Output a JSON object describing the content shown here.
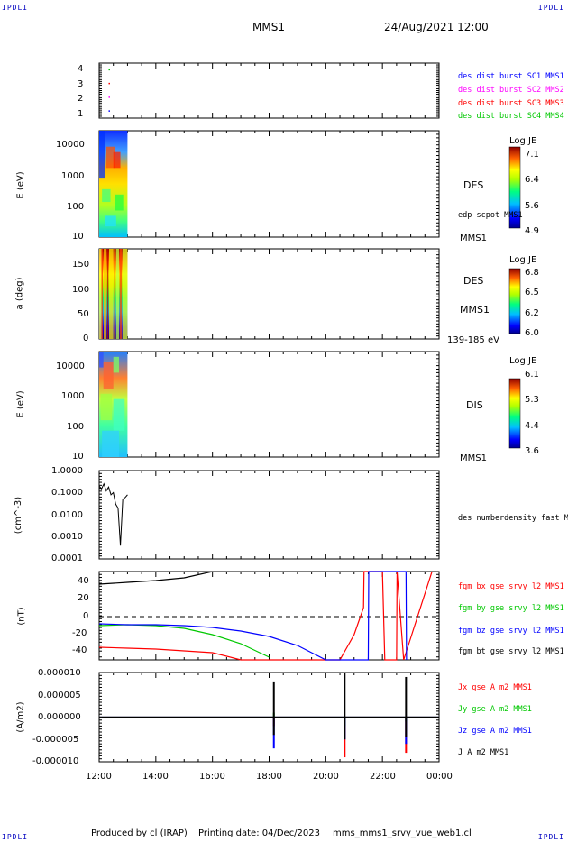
{
  "header": {
    "corner_tl": "IPDLI",
    "corner_tr": "IPDLI",
    "corner_bl": "IPDLI",
    "corner_br": "IPDLI",
    "spacecraft": "MMS1",
    "datetime": "24/Aug/2021 12:00"
  },
  "footer": {
    "produced": "Produced by cl (IRAP)",
    "printing": "Printing date: 04/Dec/2023",
    "file": "mms_mms1_srvy_vue_web1.cl"
  },
  "x_axis": {
    "ticks": [
      "12:00",
      "14:00",
      "16:00",
      "18:00",
      "20:00",
      "22:00",
      "00:00"
    ]
  },
  "panels": {
    "burst": {
      "yticks": [
        "4",
        "3",
        "2",
        "1"
      ],
      "legend": [
        {
          "text": "des dist burst SC1 MMS1",
          "color": "#0000ff"
        },
        {
          "text": "des dist burst SC2 MMS2",
          "color": "#ff00ff"
        },
        {
          "text": "des dist burst SC3 MMS3",
          "color": "#ff0000"
        },
        {
          "text": "des dist burst SC4 MMS4",
          "color": "#00c800"
        }
      ]
    },
    "des_energy": {
      "ytitle": "E (eV)",
      "yticks": [
        "10000",
        "1000",
        "100",
        "10"
      ],
      "label1": "DES",
      "label2": "edp scpot MMS1",
      "label3": "MMS1",
      "cbar_title": "Log JE",
      "cbar_ticks": [
        "7.1",
        "6.4",
        "5.6",
        "4.9"
      ]
    },
    "des_pitch": {
      "ytitle": "a (deg)",
      "yticks": [
        "150",
        "100",
        "50",
        "0"
      ],
      "label1": "DES",
      "label2": "MMS1",
      "label3": "139-185 eV",
      "cbar_title": "Log JE",
      "cbar_ticks": [
        "6.8",
        "6.5",
        "6.2",
        "6.0"
      ]
    },
    "dis_energy": {
      "ytitle": "E (eV)",
      "yticks": [
        "10000",
        "1000",
        "100",
        "10"
      ],
      "label1": "DIS",
      "label2": "MMS1",
      "cbar_title": "Log JE",
      "cbar_ticks": [
        "6.1",
        "5.3",
        "4.4",
        "3.6"
      ]
    },
    "density": {
      "ytitle": "(cm^-3)",
      "yticks": [
        "1.0000",
        "0.1000",
        "0.0100",
        "0.0010",
        "0.0001"
      ],
      "label1": "des numberdensity fast M"
    },
    "bfield": {
      "ytitle": "(nT)",
      "yticks": [
        "40",
        "20",
        "0",
        "-20",
        "-40"
      ],
      "legend": [
        {
          "text": "fgm bx gse srvy l2 MMS1",
          "color": "#ff0000"
        },
        {
          "text": "fgm by gse srvy l2 MMS1",
          "color": "#00c800"
        },
        {
          "text": "fgm bz gse srvy l2 MMS1",
          "color": "#0000ff"
        },
        {
          "text": "fgm bt gse srvy l2 MMS1",
          "color": "#000000"
        }
      ]
    },
    "current": {
      "ytitle": "(A/m2)",
      "yticks": [
        "0.000010",
        "0.000005",
        "0.000000",
        "-0.000005",
        "-0.000010"
      ],
      "legend": [
        {
          "text": "Jx gse A m2 MMS1",
          "color": "#ff0000"
        },
        {
          "text": "Jy gse A m2 MMS1",
          "color": "#00c800"
        },
        {
          "text": "Jz gse A m2 MMS1",
          "color": "#0000ff"
        },
        {
          "text": "J A m2 MMS1",
          "color": "#000000"
        }
      ]
    }
  },
  "chart_data": [
    {
      "type": "scatter",
      "title": "des dist burst",
      "x_range": [
        "12:00",
        "00:00"
      ],
      "ylim": [
        0.5,
        4.5
      ],
      "series": [
        {
          "name": "des dist burst SC1 MMS1",
          "x": [
            "12:20"
          ],
          "y": [
            1
          ]
        },
        {
          "name": "des dist burst SC2 MMS2",
          "x": [
            "12:20"
          ],
          "y": [
            2
          ]
        },
        {
          "name": "des dist burst SC3 MMS3",
          "x": [
            "12:20"
          ],
          "y": [
            3
          ]
        },
        {
          "name": "des dist burst SC4 MMS4",
          "x": [
            "12:20"
          ],
          "y": [
            4
          ]
        }
      ]
    },
    {
      "type": "heatmap",
      "ylabel": "E (eV)",
      "y_scale": "log",
      "ylim": [
        10,
        30000
      ],
      "data_extent_x": [
        "12:00",
        "13:00"
      ],
      "colorbar": {
        "title": "Log JE",
        "range": [
          4.9,
          7.1
        ]
      }
    },
    {
      "type": "heatmap",
      "ylabel": "a (deg)",
      "ylim": [
        0,
        180
      ],
      "data_extent_x": [
        "12:00",
        "13:00"
      ],
      "colorbar": {
        "title": "Log JE",
        "range": [
          6.0,
          6.8
        ]
      }
    },
    {
      "type": "heatmap",
      "ylabel": "E (eV)",
      "y_scale": "log",
      "ylim": [
        10,
        30000
      ],
      "data_extent_x": [
        "12:00",
        "13:00"
      ],
      "colorbar": {
        "title": "Log JE",
        "range": [
          3.6,
          6.1
        ]
      }
    },
    {
      "type": "line",
      "ylabel": "(cm^-3)",
      "y_scale": "log",
      "ylim": [
        0.0001,
        1.0
      ],
      "series": [
        {
          "name": "des numberdensity fast M",
          "x": [
            "12:00",
            "12:05",
            "12:10",
            "12:15",
            "12:20",
            "12:25",
            "12:30",
            "12:35",
            "12:40",
            "12:45",
            "12:50",
            "12:55",
            "13:00"
          ],
          "y": [
            0.2,
            0.15,
            0.25,
            0.12,
            0.18,
            0.08,
            0.1,
            0.03,
            0.02,
            0.0004,
            0.05,
            0.06,
            0.08
          ]
        }
      ]
    },
    {
      "type": "line",
      "ylabel": "(nT)",
      "ylim": [
        -48,
        50
      ],
      "series": [
        {
          "name": "fgm bt gse srvy l2 MMS1",
          "x": [
            "12:00",
            "13:00",
            "14:00",
            "15:00",
            "16:00"
          ],
          "y": [
            36,
            38,
            40,
            43,
            50
          ]
        },
        {
          "name": "fgm bx gse srvy l2 MMS1",
          "x": [
            "12:00",
            "13:00",
            "14:00",
            "15:00",
            "16:00",
            "17:00",
            "20:30",
            "21:00",
            "21:20",
            "21:21",
            "21:40",
            "22:00",
            "22:05",
            "22:30",
            "22:31",
            "22:45",
            "23:45"
          ],
          "y": [
            -34,
            -35,
            -36,
            -38,
            -40,
            -48,
            -48,
            -20,
            10,
            50,
            50,
            50,
            -48,
            -48,
            50,
            -48,
            50
          ]
        },
        {
          "name": "fgm by gse srvy l2 MMS1",
          "x": [
            "12:00",
            "13:00",
            "14:00",
            "15:00",
            "16:00",
            "17:00",
            "18:00"
          ],
          "y": [
            -10,
            -9,
            -10,
            -13,
            -20,
            -30,
            -45
          ]
        },
        {
          "name": "fgm bz gse srvy l2 MMS1",
          "x": [
            "12:00",
            "13:00",
            "14:00",
            "15:00",
            "16:00",
            "17:00",
            "18:00",
            "19:00",
            "20:00",
            "21:30",
            "21:31",
            "22:50",
            "22:51"
          ],
          "y": [
            -8,
            -9,
            -9,
            -10,
            -12,
            -16,
            -22,
            -32,
            -48,
            -48,
            50,
            50,
            -48
          ]
        }
      ]
    },
    {
      "type": "line",
      "ylabel": "(A/m2)",
      "ylim": [
        -1e-05,
        1e-05
      ],
      "series": [
        {
          "name": "Jx gse A m2 MMS1",
          "x": [
            "12:00",
            "18:10",
            "20:40",
            "22:50",
            "00:00"
          ],
          "y": [
            0.0,
            -2e-06,
            -9e-06,
            -8e-06,
            0.0
          ]
        },
        {
          "name": "Jy gse A m2 MMS1",
          "x": [
            "12:00",
            "18:10",
            "20:40",
            "22:50",
            "00:00"
          ],
          "y": [
            0.0,
            1e-06,
            -2e-06,
            -1e-06,
            0.0
          ]
        },
        {
          "name": "Jz gse A m2 MMS1",
          "x": [
            "12:00",
            "18:10",
            "20:40",
            "22:50",
            "00:00"
          ],
          "y": [
            0.0,
            -7e-06,
            -5e-06,
            -6e-06,
            0.0
          ]
        },
        {
          "name": "J A m2 MMS1",
          "x": [
            "12:00",
            "18:10",
            "20:40",
            "22:50",
            "00:00"
          ],
          "y": [
            0.0,
            8e-06,
            1e-05,
            9e-06,
            0.0
          ]
        }
      ]
    }
  ]
}
